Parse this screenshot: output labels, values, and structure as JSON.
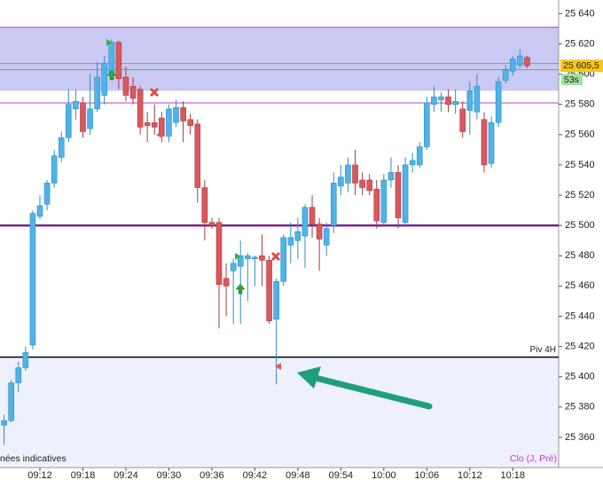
{
  "chart_data": {
    "type": "candlestick",
    "categories": [
      null,
      null,
      null,
      null,
      null,
      "09:12",
      null,
      null,
      null,
      null,
      null,
      "09:18",
      null,
      null,
      null,
      null,
      null,
      "09:24",
      null,
      null,
      null,
      null,
      null,
      "09:30",
      null,
      null,
      null,
      null,
      null,
      "09:36",
      null,
      null,
      null,
      null,
      null,
      "09:42",
      null,
      null,
      null,
      null,
      null,
      "09:48",
      null,
      null,
      null,
      null,
      null,
      "09:54",
      null,
      null,
      null,
      null,
      null,
      "10:00",
      null,
      null,
      null,
      null,
      null,
      "10:06",
      null,
      null,
      null,
      null,
      null,
      "10:12",
      null,
      null,
      null,
      null,
      null,
      "10:18",
      null,
      null
    ],
    "open": [
      25368,
      25371,
      25396,
      25406,
      25421,
      25506,
      25514,
      25528,
      25545,
      25558,
      25577,
      25581,
      25564,
      25577,
      25586,
      25601,
      25621,
      25598,
      25592,
      25590,
      25568,
      25568,
      25571,
      25559,
      25568,
      25578,
      25570,
      25567,
      25525,
      25502,
      25502,
      25465,
      25470,
      25473,
      25478,
      25478,
      25480,
      25477,
      25438,
      25463,
      25487,
      25490,
      25493,
      25512,
      25501,
      25487,
      25500,
      25526,
      25528,
      25540,
      25530,
      25530,
      25524,
      25502,
      25530,
      25535,
      25502,
      25540,
      25540,
      25552,
      25580,
      25583,
      25585,
      25580,
      25577,
      25576,
      25575,
      25570,
      25541,
      25568,
      25596,
      25602,
      25606,
      25611
    ],
    "high": [
      25375,
      25398,
      25410,
      25420,
      25510,
      25520,
      25530,
      25550,
      25562,
      25590,
      25590,
      25585,
      25600,
      25608,
      25612,
      25623,
      25622,
      25605,
      25598,
      25592,
      25575,
      25580,
      25575,
      25580,
      25583,
      25582,
      25574,
      25570,
      25530,
      25505,
      25505,
      25475,
      25478,
      25490,
      25482,
      25480,
      25494,
      25480,
      25465,
      25494,
      25502,
      25505,
      25514,
      25520,
      25505,
      25502,
      25535,
      25540,
      25545,
      25550,
      25535,
      25534,
      25530,
      25534,
      25545,
      25540,
      25545,
      25548,
      25555,
      25585,
      25592,
      25588,
      25590,
      25590,
      25582,
      25595,
      25600,
      25575,
      25572,
      25598,
      25606,
      25612,
      25616,
      25612
    ],
    "low": [
      25355,
      25370,
      25390,
      25404,
      25418,
      25504,
      25510,
      25525,
      25542,
      25555,
      25570,
      25558,
      25560,
      25575,
      25580,
      25598,
      25590,
      25582,
      25580,
      25560,
      25555,
      25560,
      25555,
      25555,
      25565,
      25555,
      25560,
      25515,
      25490,
      25498,
      25432,
      25440,
      25435,
      25435,
      25450,
      25460,
      25460,
      25435,
      25395,
      25460,
      25475,
      25478,
      25472,
      25492,
      25470,
      25480,
      25495,
      25520,
      25522,
      25520,
      25520,
      25520,
      25498,
      25500,
      25525,
      25498,
      25500,
      25535,
      25538,
      25550,
      25575,
      25575,
      25575,
      25574,
      25558,
      25560,
      25570,
      25535,
      25538,
      25565,
      25594,
      25599,
      25604,
      25604
    ],
    "close": [
      25371,
      25396,
      25406,
      25416,
      25508,
      25513,
      25528,
      25546,
      25558,
      25580,
      25582,
      25562,
      25577,
      25598,
      25607,
      25621,
      25597,
      25586,
      25584,
      25565,
      25566,
      25565,
      25559,
      25577,
      25578,
      25569,
      25566,
      25525,
      25502,
      25500,
      25461,
      25460,
      25475,
      25480,
      25480,
      25479,
      25477,
      25437,
      25463,
      25492,
      25492,
      25496,
      25512,
      25501,
      25491,
      25498,
      25528,
      25532,
      25540,
      25528,
      25525,
      25523,
      25503,
      25530,
      25535,
      25505,
      25540,
      25543,
      25552,
      25581,
      25585,
      25585,
      25580,
      25582,
      25562,
      25589,
      25592,
      25540,
      25568,
      25595,
      25603,
      25610,
      25612,
      25605.5
    ],
    "up_color": "#4fb3ea",
    "down_color": "#d9585e",
    "ylim": [
      25340,
      25649
    ],
    "yticks": [
      {
        "value": 25360,
        "label": "25 360"
      },
      {
        "value": 25380,
        "label": "25 380"
      },
      {
        "value": 25400,
        "label": "25 400"
      },
      {
        "value": 25420,
        "label": "25 420"
      },
      {
        "value": 25440,
        "label": "25 440"
      },
      {
        "value": 25460,
        "label": "25 460"
      },
      {
        "value": 25480,
        "label": "25 480"
      },
      {
        "value": 25500,
        "label": "25 500"
      },
      {
        "value": 25520,
        "label": "25 520"
      },
      {
        "value": 25540,
        "label": "25 540"
      },
      {
        "value": 25560,
        "label": "25 560"
      },
      {
        "value": 25580,
        "label": "25 580"
      },
      {
        "value": 25600,
        "label": "25 600"
      },
      {
        "value": 25620,
        "label": "25 620"
      },
      {
        "value": 25640,
        "label": "25 640"
      }
    ],
    "band": {
      "from": 25589,
      "to": 25631,
      "color": "#c9c9f3"
    },
    "lower_zone": {
      "below": 25413,
      "color": "#eef0fb"
    },
    "levels": [
      {
        "value": 25631,
        "color": "#c23bc2",
        "width": 1
      },
      {
        "value": 25581,
        "color": "#c23bc2",
        "width": 1
      },
      {
        "value": 25607,
        "color": "#5cb85c",
        "width": 1
      },
      {
        "value": 25603,
        "color": "#5cb85c",
        "width": 1
      },
      {
        "value": 25500,
        "color": "#7b1f8c",
        "width": 2.5
      },
      {
        "value": 25413,
        "color": "#000000",
        "width": 1.5,
        "label": "Piv 4H"
      }
    ],
    "last_price": {
      "value": 25605.5,
      "label": "25 605,5",
      "timer": "53s"
    },
    "footer_left": "nées indicatives",
    "footer_right": "Clo (J, Pré)"
  }
}
